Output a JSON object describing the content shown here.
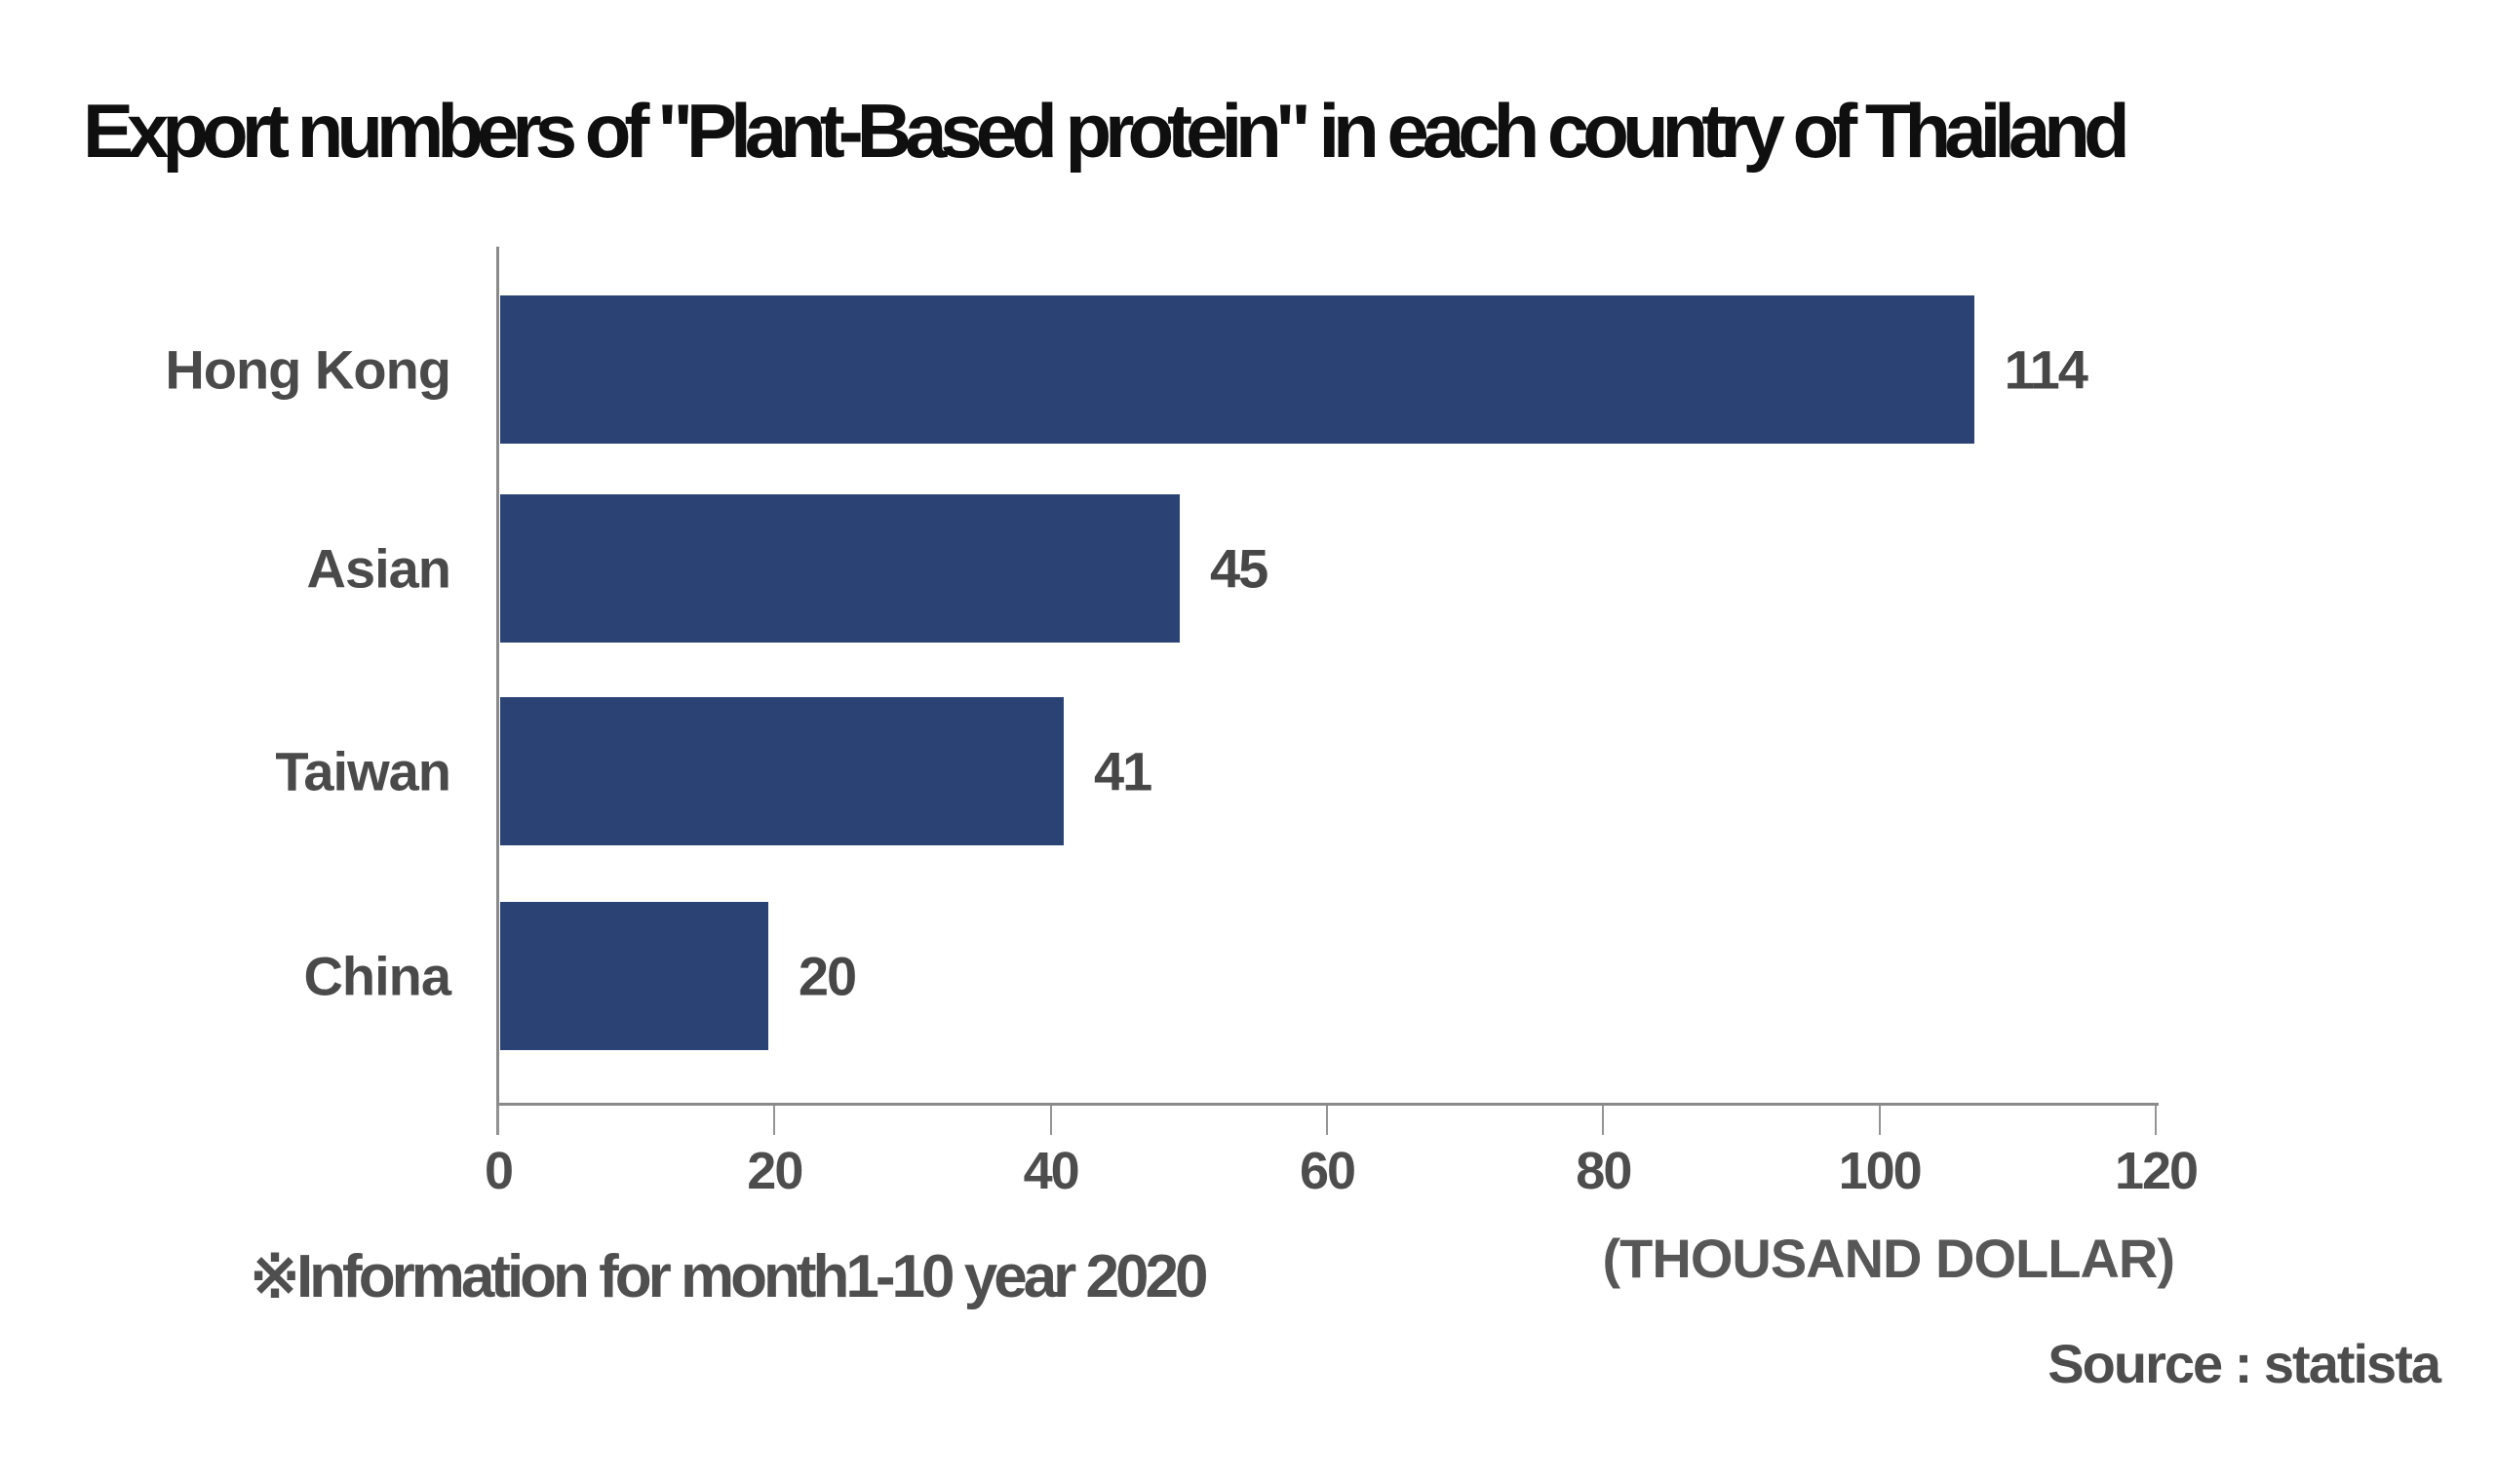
{
  "title": "Export numbers of \"Plant-Based protein\" in each country of Thailand",
  "note": "※Information for month1-10 year 2020",
  "source": "Source : statista",
  "colors": {
    "bar": "#2a4274",
    "category_label": "#4a4a4a",
    "value_label": "#474747",
    "axis_line": "#8a8a8a",
    "tick_label": "#4d4d4d",
    "title": "#0f0f0f"
  },
  "chart_data": {
    "type": "bar",
    "orientation": "horizontal",
    "title": "Export numbers of \"Plant-Based protein\" in each country of Thailand",
    "categories": [
      "Hong Kong",
      "Asian",
      "Taiwan",
      "China"
    ],
    "values": [
      114,
      45,
      41,
      20
    ],
    "xlabel": "(THOUSAND DOLLAR)",
    "ylabel": "",
    "xlim": [
      0,
      120
    ],
    "xticks": [
      0,
      20,
      40,
      60,
      80,
      100,
      120
    ],
    "grid": false,
    "legend": false,
    "layout_hints": {
      "bar_color": "#2a4274",
      "drawn_bar_units": [
        106.7,
        49.2,
        40.8,
        19.4
      ],
      "value_labels_outside_end": true
    }
  }
}
